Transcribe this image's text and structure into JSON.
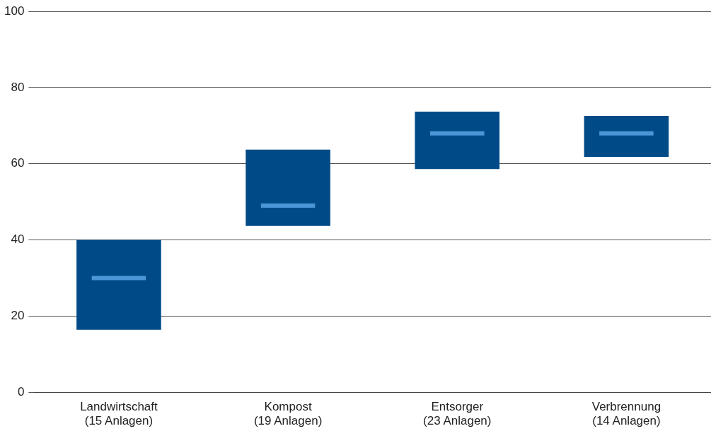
{
  "chart_data": {
    "type": "box",
    "categories": [
      "Landwirtschaft\n(15 Anlagen)",
      "Kompost\n(19 Anlagen)",
      "Entsorger\n(23 Anlagen)",
      "Verbrennung\n(14 Anlagen)"
    ],
    "color": "#004a87",
    "boxes": [
      {
        "low": 16.4,
        "q1": 16.4,
        "median": 30,
        "q3": 40,
        "high": 40
      },
      {
        "low": 43.7,
        "q1": 43.7,
        "median": 49,
        "q3": 63.7,
        "high": 63.7
      },
      {
        "low": 58.6,
        "q1": 58.6,
        "median": 68,
        "q3": 73.7,
        "high": 73.7
      },
      {
        "low": 61.8,
        "q1": 61.8,
        "median": 68,
        "q3": 72.6,
        "high": 72.6
      }
    ],
    "ylim": [
      0,
      100
    ],
    "yticks": [
      0,
      20,
      40,
      60,
      80,
      100
    ],
    "grid": "y",
    "legend": false
  }
}
